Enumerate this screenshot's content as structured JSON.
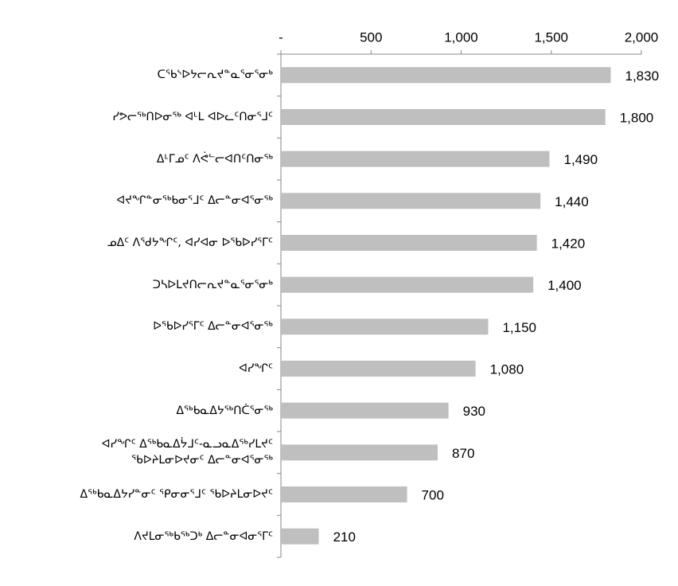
{
  "chart_data": {
    "type": "hbar",
    "categories": [
      "ᑕᕐᑲᔅᐅᔭᓕᕆᔪᓐᓇᕐᓂᕐᓂᒃ",
      "ᓯᕗᓕᖅᑎᐅᓂᖅ ᐊᒻᒪ ᐊᐅᓚᑦᑎᓂᕐᒧᑦ",
      "ᐃᒻᒥᓄᑦ ᐱᕚᓪᓕᐊᑎᑦᑎᓂᖅ",
      "ᐊᔪᖏᓐᓂᖅᑲᓂᕐᒧᑦ ᐃᓕᓐᓂᐊᕐᓂᖅ",
      "ᓄᐃᑦ ᐱᖁᔭᖏᑦ, ᐊᓯᐊᓂ ᐅᖃᐅᓯᕐᒥᑦ",
      "ᑐᓴᐅᒪᔪᑎᓕᕆᔪᓐᓇᕐᓂᕐᓂᒃ",
      "ᐅᖃᐅᓯᕐᒥᑦ ᐃᓕᓐᓂᐊᕐᓂᖅ",
      "ᐊᓯᖏᑦ",
      "ᐃᖅᑲᓇᐃᔭᖅᑎᑖᕐᓂᖅ",
      "ᐊᓯᖏᑦ ᐃᖅᑲᓇᐃᔮᒧᑦ-ᓇᓗᓇᐃᖅᓯᒪᔪᑦ ᖃᐅᔨᒪᓂᐅᔪᓂᑦ ᐃᓕᓐᓂᐊᕐᓂᖅ",
      "ᐃᖅᑲᓇᐃᔭᓯᓐᓂᑦ ᕿᓂᓂᕐᒧᑦ ᖃᐅᔨᒪᓂᐅᔪᑦ",
      "ᐱᔪᒪᓂᖅᑲᖅᑐᒃ ᐃᓕᓐᓂᐊᓂᕐᒥᑦ"
    ],
    "values": [
      1830,
      1800,
      1490,
      1440,
      1420,
      1400,
      1150,
      1080,
      930,
      870,
      700,
      210
    ],
    "value_labels": [
      "1,830",
      "1,800",
      "1,490",
      "1,440",
      "1,420",
      "1,400",
      "1,150",
      "1,080",
      "930",
      "870",
      "700",
      "210"
    ],
    "color": "#bfbfbf",
    "xlim": [
      0,
      2000
    ],
    "xticks": [
      {
        "value": 0,
        "label": "-"
      },
      500,
      {
        "value": 1000,
        "label": "1,000"
      },
      {
        "value": 1500,
        "label": "1,500"
      },
      {
        "value": 2000,
        "label": "2,000"
      }
    ]
  }
}
